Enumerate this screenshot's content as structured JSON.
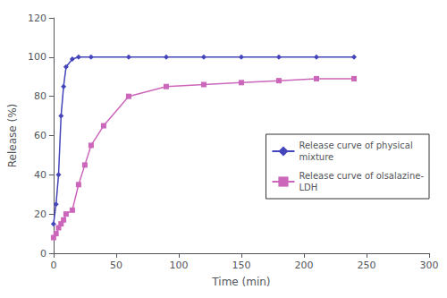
{
  "chart_data": {
    "type": "line",
    "xlabel": "Time (min)",
    "ylabel": "Release (%)",
    "series": [
      {
        "name": "Release curve of physical\nmixture",
        "color": "#4444bb",
        "marker": "diamond",
        "x": [
          0,
          2,
          4,
          6,
          8,
          10,
          15,
          20,
          30,
          60,
          90,
          120,
          150,
          180,
          210,
          240
        ],
        "values": [
          15,
          25,
          40,
          70,
          85,
          95,
          99,
          100,
          100,
          100,
          100,
          100,
          100,
          100,
          100,
          100
        ]
      },
      {
        "name": "Release curve of olsalazine-\nLDH",
        "color": "#cc66bb",
        "marker": "square",
        "x": [
          0,
          2,
          4,
          6,
          8,
          10,
          15,
          20,
          25,
          30,
          40,
          60,
          90,
          120,
          150,
          180,
          210,
          240
        ],
        "values": [
          8,
          10,
          13,
          15,
          17,
          20,
          22,
          35,
          45,
          55,
          65,
          80,
          85,
          86,
          87,
          88,
          89,
          89
        ]
      }
    ],
    "xlim": [
      0,
      300
    ],
    "ylim": [
      0,
      120
    ],
    "xticks": [
      0,
      50,
      100,
      150,
      200,
      250,
      300
    ],
    "yticks": [
      0,
      20,
      40,
      60,
      80,
      100,
      120
    ],
    "grid": false,
    "legend": "right"
  }
}
